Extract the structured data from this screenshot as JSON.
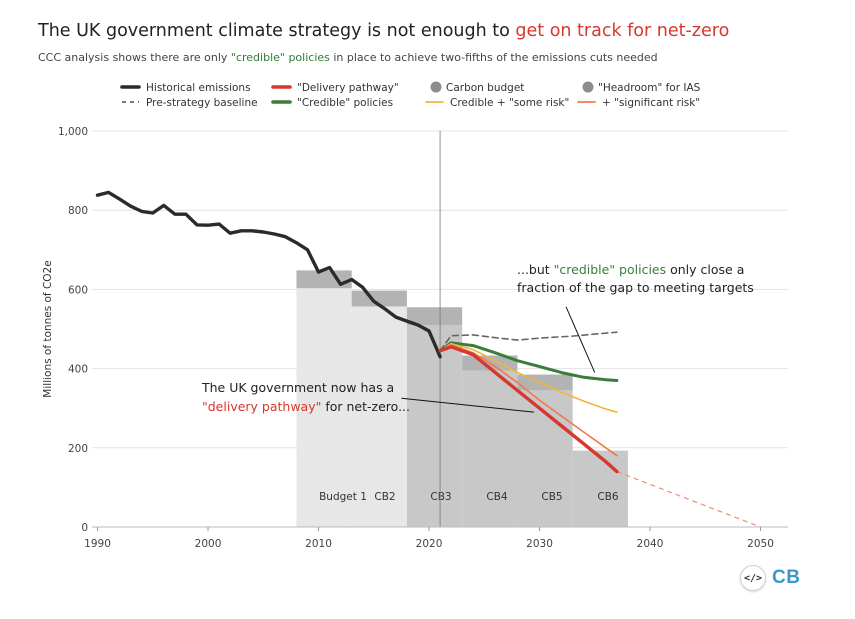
{
  "header": {
    "title_main": "The UK government climate strategy is not enough to ",
    "title_highlight": "get on track for net-zero",
    "subtitle_pre": "CCC analysis shows there are only ",
    "subtitle_highlight": "\"credible\" policies",
    "subtitle_post": " in place to achieve two-fifths of the emissions cuts needed"
  },
  "colors": {
    "historical": "#2b2b2b",
    "baseline": "#666666",
    "delivery": "#d7372d",
    "credible": "#3a7d3a",
    "some_risk": "#f0b63a",
    "significant_risk": "#f4784a",
    "budget_light": "#e7e7e7",
    "budget_dark": "#c8c8c8",
    "headroom": "#b3b3b3",
    "net_zero_dashed": "#f08a78"
  },
  "chart_data": {
    "type": "line",
    "ylabel": "Millions of tonnes of CO2e",
    "xlim": [
      1989.5,
      2051
    ],
    "ylim": [
      0,
      1000
    ],
    "x_ticks": [
      1990,
      2000,
      2010,
      2020,
      2030,
      2040,
      2050
    ],
    "y_ticks": [
      0,
      200,
      400,
      600,
      800,
      1000
    ],
    "y_tick_labels": [
      "0",
      "200",
      "400",
      "600",
      "800",
      "1,000"
    ],
    "grid": "horizontal",
    "legend_placement": "top",
    "legend": [
      {
        "label": "Historical emissions",
        "style": "thick-line",
        "color": "#2b2b2b"
      },
      {
        "label": "Pre-strategy baseline",
        "style": "dashed-line",
        "color": "#666666"
      },
      {
        "label": "\"Delivery pathway\"",
        "style": "thick-line",
        "color": "#d7372d"
      },
      {
        "label": "\"Credible\" policies",
        "style": "thick-line",
        "color": "#3a7d3a"
      },
      {
        "label": "Carbon budget",
        "style": "dot",
        "color": "#8c8c8c"
      },
      {
        "label": "Credible + \"some risk\"",
        "style": "line",
        "color": "#f0b63a"
      },
      {
        "label": "\"Headroom\" for IAS",
        "style": "dot",
        "color": "#8c8c8c"
      },
      {
        "label": "+ \"significant risk\"",
        "style": "line",
        "color": "#f4784a"
      }
    ],
    "carbon_budgets": [
      {
        "label": "Budget 1",
        "start": 2008,
        "end": 2012,
        "value": 603,
        "headroom": 45,
        "shade": "light"
      },
      {
        "label": "CB2",
        "start": 2013,
        "end": 2017,
        "value": 557,
        "headroom": 40,
        "shade": "light"
      },
      {
        "label": "CB3",
        "start": 2018,
        "end": 2022,
        "value": 510,
        "headroom": 45,
        "shade": "dark"
      },
      {
        "label": "CB4",
        "start": 2023,
        "end": 2027,
        "value": 395,
        "headroom": 38,
        "shade": "dark"
      },
      {
        "label": "CB5",
        "start": 2028,
        "end": 2032,
        "value": 345,
        "headroom": 40,
        "shade": "dark"
      },
      {
        "label": "CB6",
        "start": 2033,
        "end": 2037,
        "value": 193,
        "headroom": 0,
        "shade": "dark"
      }
    ],
    "reference_line_x": 2021,
    "series": [
      {
        "name": "Historical emissions",
        "key": "historical",
        "x": [
          1990,
          1991,
          1992,
          1993,
          1994,
          1995,
          1996,
          1997,
          1998,
          1999,
          2000,
          2001,
          2002,
          2003,
          2004,
          2005,
          2006,
          2007,
          2008,
          2009,
          2010,
          2011,
          2012,
          2013,
          2014,
          2015,
          2016,
          2017,
          2018,
          2019,
          2020,
          2021
        ],
        "y": [
          838,
          845,
          828,
          810,
          797,
          793,
          812,
          790,
          790,
          763,
          762,
          765,
          742,
          748,
          748,
          745,
          740,
          733,
          718,
          700,
          644,
          655,
          613,
          625,
          605,
          570,
          551,
          530,
          520,
          510,
          495,
          430
        ]
      },
      {
        "name": "Pre-strategy baseline",
        "key": "baseline",
        "x": [
          2021,
          2022,
          2024,
          2026,
          2028,
          2030,
          2033,
          2035,
          2037
        ],
        "y": [
          445,
          483,
          485,
          478,
          472,
          477,
          482,
          487,
          492
        ]
      },
      {
        "name": "\"Credible\" policies",
        "key": "credible",
        "x": [
          2021,
          2022,
          2024,
          2026,
          2028,
          2030,
          2032,
          2034,
          2036,
          2037
        ],
        "y": [
          445,
          465,
          458,
          440,
          420,
          405,
          390,
          378,
          372,
          370
        ]
      },
      {
        "name": "Credible + \"some risk\"",
        "key": "some_risk",
        "x": [
          2021,
          2022,
          2024,
          2026,
          2028,
          2030,
          2032,
          2034,
          2036,
          2037
        ],
        "y": [
          445,
          463,
          448,
          420,
          390,
          365,
          340,
          318,
          298,
          290
        ]
      },
      {
        "name": "+ \"significant risk\"",
        "key": "significant_risk",
        "x": [
          2021,
          2022,
          2024,
          2026,
          2028,
          2030,
          2032,
          2034,
          2036,
          2037
        ],
        "y": [
          445,
          460,
          440,
          405,
          365,
          320,
          280,
          240,
          200,
          180
        ]
      },
      {
        "name": "\"Delivery pathway\"",
        "key": "delivery",
        "x": [
          2021,
          2022,
          2024,
          2026,
          2028,
          2030,
          2032,
          2034,
          2036,
          2037
        ],
        "y": [
          445,
          455,
          435,
          390,
          345,
          300,
          255,
          210,
          165,
          140
        ]
      }
    ],
    "net_zero_extension": {
      "x": [
        2037,
        2050
      ],
      "y": [
        140,
        0
      ]
    },
    "annotations": [
      {
        "key": "credible",
        "lines": [
          "...but ",
          "\"credible\" policies",
          " only close a",
          "fraction of the gap to meeting targets"
        ],
        "pointer": {
          "from": [
            2032.4,
            556
          ],
          "to": [
            2035,
            390
          ]
        }
      },
      {
        "key": "delivery",
        "lines": [
          "The UK government now has a",
          "\"delivery pathway\"",
          " for net-zero..."
        ],
        "pointer": {
          "from": [
            2017.5,
            325
          ],
          "to": [
            2029.5,
            290
          ]
        }
      }
    ]
  },
  "logo": {
    "icon_text": "</>",
    "text": "CB"
  }
}
